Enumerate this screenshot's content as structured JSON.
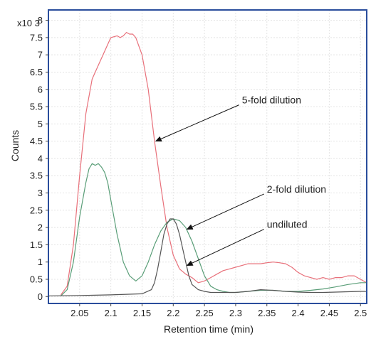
{
  "chart_data": {
    "type": "line",
    "title": "",
    "xlabel": "Retention time (min)",
    "ylabel": "Counts",
    "y_multiplier": "x10 3",
    "xlim": [
      2.0,
      2.51
    ],
    "ylim": [
      -0.2,
      8.3
    ],
    "grid": true,
    "x_ticks": [
      "2.05",
      "2.1",
      "2.15",
      "2.2",
      "2.25",
      "2.3",
      "2.35",
      "2.4",
      "2.45",
      "2.5"
    ],
    "y_ticks": [
      "0",
      "0.5",
      "1",
      "1.5",
      "2",
      "2.5",
      "3",
      "3.5",
      "4",
      "4.5",
      "5",
      "5.5",
      "6",
      "6.5",
      "7",
      "7.5",
      "8"
    ],
    "series": [
      {
        "name": "5-fold dilution",
        "color": "#e8707a",
        "x": [
          2.02,
          2.03,
          2.04,
          2.05,
          2.06,
          2.07,
          2.08,
          2.09,
          2.1,
          2.11,
          2.115,
          2.12,
          2.125,
          2.13,
          2.135,
          2.14,
          2.15,
          2.16,
          2.17,
          2.18,
          2.19,
          2.2,
          2.21,
          2.22,
          2.23,
          2.24,
          2.25,
          2.26,
          2.27,
          2.28,
          2.29,
          2.3,
          2.31,
          2.32,
          2.33,
          2.34,
          2.35,
          2.36,
          2.37,
          2.38,
          2.39,
          2.4,
          2.41,
          2.42,
          2.43,
          2.44,
          2.45,
          2.46,
          2.47,
          2.48,
          2.49,
          2.5,
          2.51
        ],
        "y": [
          0.05,
          0.3,
          1.5,
          3.5,
          5.3,
          6.3,
          6.7,
          7.1,
          7.5,
          7.55,
          7.5,
          7.55,
          7.65,
          7.6,
          7.6,
          7.5,
          7.0,
          6.0,
          4.5,
          3.2,
          2.0,
          1.2,
          0.8,
          0.65,
          0.55,
          0.4,
          0.45,
          0.55,
          0.65,
          0.75,
          0.8,
          0.85,
          0.9,
          0.95,
          0.95,
          0.95,
          0.98,
          1.0,
          0.98,
          0.95,
          0.85,
          0.7,
          0.6,
          0.55,
          0.5,
          0.55,
          0.5,
          0.55,
          0.55,
          0.6,
          0.6,
          0.5,
          0.4
        ]
      },
      {
        "name": "2-fold dilution",
        "color": "#5a9e78",
        "x": [
          2.02,
          2.03,
          2.04,
          2.05,
          2.06,
          2.065,
          2.07,
          2.075,
          2.08,
          2.085,
          2.09,
          2.095,
          2.1,
          2.11,
          2.12,
          2.13,
          2.14,
          2.15,
          2.16,
          2.17,
          2.18,
          2.19,
          2.2,
          2.21,
          2.22,
          2.23,
          2.24,
          2.25,
          2.26,
          2.27,
          2.28,
          2.29,
          2.3,
          2.32,
          2.34,
          2.36,
          2.38,
          2.4,
          2.42,
          2.44,
          2.46,
          2.48,
          2.5,
          2.51
        ],
        "y": [
          0.02,
          0.2,
          1.0,
          2.3,
          3.3,
          3.7,
          3.85,
          3.8,
          3.85,
          3.75,
          3.6,
          3.3,
          2.8,
          1.8,
          1.0,
          0.6,
          0.45,
          0.6,
          1.0,
          1.5,
          1.9,
          2.15,
          2.25,
          2.2,
          2.0,
          1.6,
          1.1,
          0.6,
          0.3,
          0.2,
          0.15,
          0.12,
          0.12,
          0.15,
          0.18,
          0.18,
          0.15,
          0.15,
          0.18,
          0.22,
          0.28,
          0.35,
          0.4,
          0.4
        ]
      },
      {
        "name": "undiluted",
        "color": "#555555",
        "x": [
          2.0,
          2.05,
          2.1,
          2.15,
          2.165,
          2.17,
          2.175,
          2.18,
          2.185,
          2.19,
          2.195,
          2.2,
          2.205,
          2.21,
          2.215,
          2.22,
          2.225,
          2.23,
          2.24,
          2.25,
          2.26,
          2.28,
          2.3,
          2.32,
          2.34,
          2.36,
          2.38,
          2.4,
          2.42,
          2.44,
          2.46,
          2.48,
          2.5,
          2.51
        ],
        "y": [
          0.02,
          0.03,
          0.05,
          0.08,
          0.2,
          0.4,
          0.8,
          1.3,
          1.8,
          2.1,
          2.25,
          2.25,
          2.1,
          1.8,
          1.4,
          1.0,
          0.6,
          0.35,
          0.2,
          0.15,
          0.12,
          0.12,
          0.12,
          0.15,
          0.2,
          0.18,
          0.15,
          0.13,
          0.12,
          0.12,
          0.13,
          0.14,
          0.15,
          0.15
        ]
      }
    ],
    "annotations": [
      {
        "text": "5-fold dilution",
        "text_x": 2.31,
        "text_y": 5.55,
        "point_x": 2.172,
        "point_y": 4.5
      },
      {
        "text": "2-fold dilution",
        "text_x": 2.35,
        "text_y": 2.97,
        "point_x": 2.222,
        "point_y": 1.95
      },
      {
        "text": "undiluted",
        "text_x": 2.35,
        "text_y": 1.95,
        "point_x": 2.222,
        "point_y": 0.9
      }
    ]
  }
}
